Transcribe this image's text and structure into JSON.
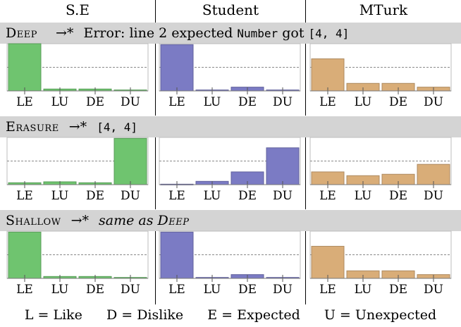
{
  "columns": [
    "S.E",
    "Student",
    "MTurk"
  ],
  "categories": [
    "LE",
    "LU",
    "DE",
    "DU"
  ],
  "colors": {
    "S.E": "#6fc46f",
    "Student": "#7b7bc4",
    "MTurk": "#d9ad78"
  },
  "sections": [
    {
      "name": "Deep",
      "arrow": "→*",
      "text_plain": "Error: line 2 expected ",
      "text_mono1": "Number",
      "text_plain2": " got ",
      "text_mono2": "[4, 4]"
    },
    {
      "name": "Erasure",
      "arrow": "→*",
      "text_mono1": "[4, 4]"
    },
    {
      "name": "Shallow",
      "arrow": "→*",
      "text_italic": "same as ",
      "text_italic_sc": "Deep"
    }
  ],
  "legend": [
    "L = Like",
    "D = Dislike",
    "E = Expected",
    "U = Unexpected"
  ],
  "chart_data": [
    {
      "type": "bar",
      "row": "Deep",
      "column": "S.E",
      "categories": [
        "LE",
        "LU",
        "DE",
        "DU"
      ],
      "values": [
        1.0,
        0.04,
        0.04,
        0.02
      ],
      "reference_line": 0.5,
      "ylim": [
        0,
        1
      ]
    },
    {
      "type": "bar",
      "row": "Deep",
      "column": "Student",
      "categories": [
        "LE",
        "LU",
        "DE",
        "DU"
      ],
      "values": [
        0.98,
        0.02,
        0.08,
        0.02
      ],
      "reference_line": 0.5,
      "ylim": [
        0,
        1
      ]
    },
    {
      "type": "bar",
      "row": "Deep",
      "column": "MTurk",
      "categories": [
        "LE",
        "LU",
        "DE",
        "DU"
      ],
      "values": [
        0.68,
        0.16,
        0.16,
        0.08
      ],
      "reference_line": 0.5,
      "ylim": [
        0,
        1
      ]
    },
    {
      "type": "bar",
      "row": "Erasure",
      "column": "S.E",
      "categories": [
        "LE",
        "LU",
        "DE",
        "DU"
      ],
      "values": [
        0.04,
        0.06,
        0.04,
        0.98
      ],
      "reference_line": 0.5,
      "ylim": [
        0,
        1
      ]
    },
    {
      "type": "bar",
      "row": "Erasure",
      "column": "Student",
      "categories": [
        "LE",
        "LU",
        "DE",
        "DU"
      ],
      "values": [
        0.01,
        0.07,
        0.27,
        0.78
      ],
      "reference_line": 0.5,
      "ylim": [
        0,
        1
      ]
    },
    {
      "type": "bar",
      "row": "Erasure",
      "column": "MTurk",
      "categories": [
        "LE",
        "LU",
        "DE",
        "DU"
      ],
      "values": [
        0.27,
        0.19,
        0.22,
        0.43
      ],
      "reference_line": 0.5,
      "ylim": [
        0,
        1
      ]
    },
    {
      "type": "bar",
      "row": "Shallow",
      "column": "S.E",
      "categories": [
        "LE",
        "LU",
        "DE",
        "DU"
      ],
      "values": [
        0.98,
        0.04,
        0.04,
        0.02
      ],
      "reference_line": 0.5,
      "ylim": [
        0,
        1
      ]
    },
    {
      "type": "bar",
      "row": "Shallow",
      "column": "Student",
      "categories": [
        "LE",
        "LU",
        "DE",
        "DU"
      ],
      "values": [
        0.98,
        0.02,
        0.08,
        0.02
      ],
      "reference_line": 0.5,
      "ylim": [
        0,
        1
      ]
    },
    {
      "type": "bar",
      "row": "Shallow",
      "column": "MTurk",
      "categories": [
        "LE",
        "LU",
        "DE",
        "DU"
      ],
      "values": [
        0.68,
        0.16,
        0.16,
        0.08
      ],
      "reference_line": 0.5,
      "ylim": [
        0,
        1
      ]
    }
  ]
}
